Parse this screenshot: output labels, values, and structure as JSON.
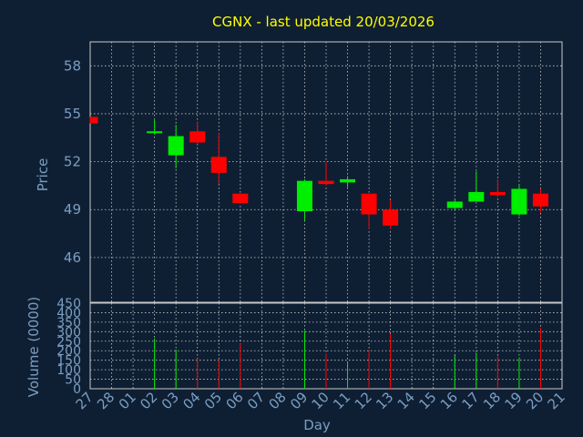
{
  "title": "CGNX - last updated 20/03/2026",
  "colors": {
    "background": "#0f1f33",
    "text": "#7a9ec2",
    "title": "#ffff00",
    "grid": "#c8c8c8",
    "up": "#00ee00",
    "down": "#ff0000"
  },
  "chart_data": [
    {
      "type": "candlestick",
      "title": "CGNX - last updated 20/03/2026",
      "ylabel": "Price",
      "ylim": [
        43.2,
        59.5
      ],
      "yticks": [
        46,
        49,
        52,
        55,
        58
      ],
      "grid": true,
      "categories": [
        "27",
        "28",
        "01",
        "02",
        "03",
        "04",
        "05",
        "06",
        "07",
        "08",
        "09",
        "10",
        "11",
        "12",
        "13",
        "14",
        "15",
        "16",
        "17",
        "18",
        "19",
        "20",
        "21"
      ],
      "candles": [
        {
          "x": "27",
          "open": 54.8,
          "high": 54.8,
          "low": 54.4,
          "close": 54.4
        },
        {
          "x": "02",
          "open": 53.8,
          "high": 54.6,
          "low": 53.7,
          "close": 53.9
        },
        {
          "x": "03",
          "open": 52.4,
          "high": 54.3,
          "low": 51.6,
          "close": 53.6
        },
        {
          "x": "04",
          "open": 53.9,
          "high": 54.5,
          "low": 53.1,
          "close": 53.2
        },
        {
          "x": "05",
          "open": 52.3,
          "high": 53.8,
          "low": 50.6,
          "close": 51.3
        },
        {
          "x": "06",
          "open": 50.0,
          "high": 50.0,
          "low": 49.4,
          "close": 49.4
        },
        {
          "x": "09",
          "open": 48.9,
          "high": 50.9,
          "low": 48.3,
          "close": 50.8
        },
        {
          "x": "10",
          "open": 50.8,
          "high": 52.0,
          "low": 50.5,
          "close": 50.6
        },
        {
          "x": "11",
          "open": 50.7,
          "high": 51.1,
          "low": 50.4,
          "close": 50.9
        },
        {
          "x": "12",
          "open": 50.0,
          "high": 50.0,
          "low": 47.8,
          "close": 48.7
        },
        {
          "x": "13",
          "open": 49.0,
          "high": 49.6,
          "low": 47.8,
          "close": 48.0
        },
        {
          "x": "16",
          "open": 49.1,
          "high": 49.6,
          "low": 49.0,
          "close": 49.5
        },
        {
          "x": "17",
          "open": 49.5,
          "high": 51.4,
          "low": 49.5,
          "close": 50.1
        },
        {
          "x": "18",
          "open": 50.1,
          "high": 50.9,
          "low": 49.8,
          "close": 49.9
        },
        {
          "x": "19",
          "open": 48.7,
          "high": 50.6,
          "low": 48.6,
          "close": 50.3
        },
        {
          "x": "20",
          "open": 50.0,
          "high": 50.3,
          "low": 48.8,
          "close": 49.2
        }
      ]
    },
    {
      "type": "bar",
      "xlabel": "Day",
      "ylabel": "Volume (0000)",
      "ylim": [
        0,
        450
      ],
      "yticks": [
        0,
        50,
        100,
        150,
        200,
        250,
        300,
        350,
        400,
        450
      ],
      "grid": true,
      "categories": [
        "27",
        "28",
        "01",
        "02",
        "03",
        "04",
        "05",
        "06",
        "07",
        "08",
        "09",
        "10",
        "11",
        "12",
        "13",
        "14",
        "15",
        "16",
        "17",
        "18",
        "19",
        "20",
        "21"
      ],
      "bars": [
        {
          "x": "02",
          "value": 265,
          "direction": "up"
        },
        {
          "x": "03",
          "value": 205,
          "direction": "up"
        },
        {
          "x": "04",
          "value": 160,
          "direction": "down"
        },
        {
          "x": "05",
          "value": 155,
          "direction": "down"
        },
        {
          "x": "06",
          "value": 240,
          "direction": "down"
        },
        {
          "x": "09",
          "value": 305,
          "direction": "up"
        },
        {
          "x": "10",
          "value": 185,
          "direction": "down"
        },
        {
          "x": "11",
          "value": 135,
          "direction": "up"
        },
        {
          "x": "12",
          "value": 205,
          "direction": "down"
        },
        {
          "x": "13",
          "value": 290,
          "direction": "down"
        },
        {
          "x": "16",
          "value": 175,
          "direction": "up"
        },
        {
          "x": "17",
          "value": 190,
          "direction": "up"
        },
        {
          "x": "18",
          "value": 170,
          "direction": "down"
        },
        {
          "x": "19",
          "value": 165,
          "direction": "up"
        },
        {
          "x": "20",
          "value": 320,
          "direction": "down"
        }
      ]
    }
  ]
}
